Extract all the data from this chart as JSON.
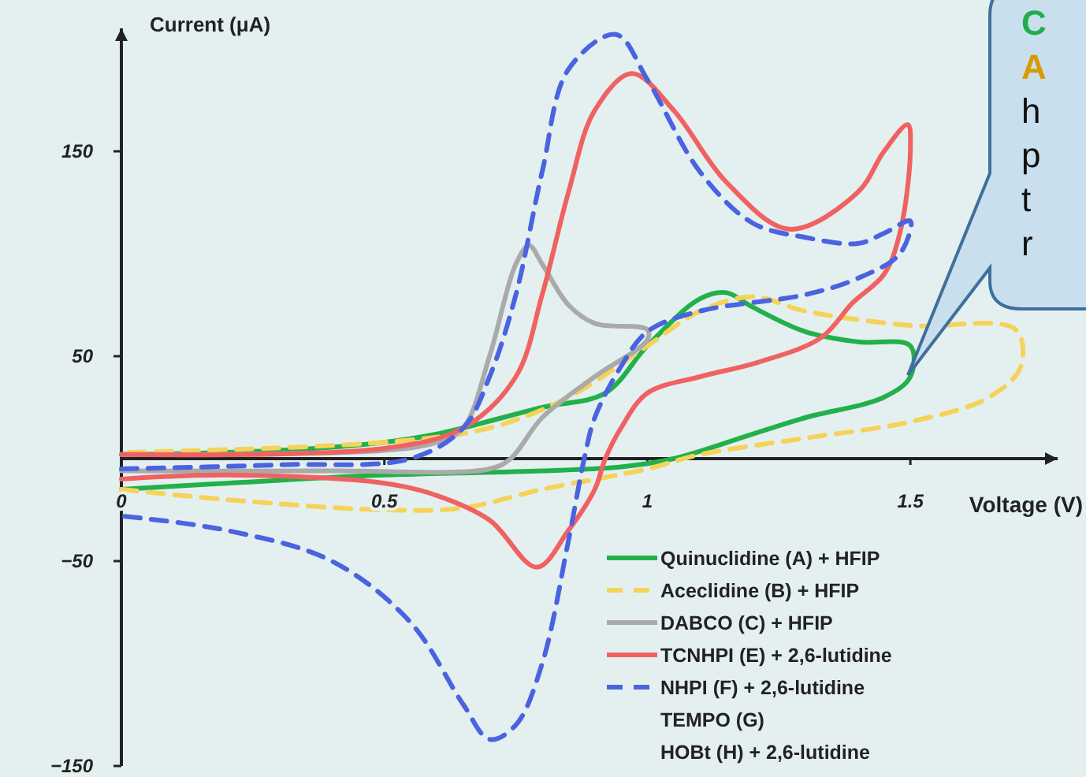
{
  "chart_data": {
    "type": "line",
    "xlabel": "Voltage (V)",
    "ylabel": "Current (μA)",
    "xlim": [
      0,
      1.78
    ],
    "ylim": [
      -150,
      210
    ],
    "xticks": [
      0,
      0.5,
      1,
      1.5
    ],
    "yticks": [
      {
        "value": -150,
        "label": "−150"
      },
      {
        "value": -50,
        "label": "−50"
      },
      50,
      150
    ],
    "legend": "bottom right",
    "grid": false,
    "annotations": [
      "TEMPO (G)",
      "HOBt (H) + 2,6-lutidine",
      "C",
      "A",
      "h",
      "p",
      "t",
      "r"
    ],
    "series": [
      {
        "name": "Quinuclidine (A) + HFIP",
        "color": "#22b04a",
        "line_style": "solid",
        "x": [
          0,
          0.2,
          0.5,
          0.8,
          0.95,
          1.05,
          1.2,
          1.3,
          1.45,
          1.5,
          1.5,
          1.4,
          1.3,
          1.2,
          1.15,
          1.1,
          1.0,
          0.92,
          0.8,
          0.6,
          0.5,
          0.3,
          0
        ],
        "values": [
          -15,
          -12,
          -8,
          -6,
          -4,
          0,
          12,
          20,
          30,
          40,
          55,
          57,
          62,
          74,
          81,
          78,
          55,
          32,
          25,
          12,
          8,
          4,
          2
        ]
      },
      {
        "name": "Aceclidine (B) + HFIP",
        "color": "#f5d35a",
        "line_style": "dashed",
        "x": [
          0,
          0.2,
          0.5,
          0.65,
          0.8,
          1.0,
          1.1,
          1.3,
          1.5,
          1.65,
          1.71,
          1.7,
          1.5,
          1.3,
          1.2,
          1.1,
          1.0,
          0.85,
          0.7,
          0.5,
          0
        ],
        "values": [
          -15,
          -20,
          -25,
          -24,
          -15,
          -5,
          2,
          10,
          18,
          30,
          45,
          63,
          65,
          72,
          79,
          72,
          55,
          30,
          15,
          8,
          3
        ]
      },
      {
        "name": "DABCO (C) + HFIP",
        "color": "#aaaaaa",
        "line_style": "solid",
        "x": [
          0,
          0.5,
          0.6,
          0.65,
          0.7,
          0.75,
          0.775,
          0.8,
          0.85,
          0.9,
          1.0,
          1.0,
          0.9,
          0.8,
          0.74,
          0.7,
          0.4,
          0
        ],
        "values": [
          2,
          4,
          8,
          15,
          50,
          95,
          104,
          95,
          75,
          66,
          63,
          58,
          40,
          20,
          0,
          -5,
          -6,
          -6
        ]
      },
      {
        "name": "TCNHPI (E) + 2,6-lutidine",
        "color": "#f06262",
        "line_style": "solid",
        "x": [
          0,
          0.5,
          0.65,
          0.75,
          0.8,
          0.85,
          0.9,
          0.97,
          1.05,
          1.15,
          1.27,
          1.4,
          1.45,
          1.495,
          1.5,
          1.48,
          1.45,
          1.39,
          1.33,
          1.21,
          1.1,
          1.0,
          0.95,
          0.92,
          0.9,
          0.85,
          0.79,
          0.7,
          0.6,
          0.5,
          0.2,
          0
        ],
        "values": [
          2,
          5,
          15,
          40,
          80,
          130,
          170,
          188,
          170,
          135,
          112,
          130,
          150,
          163,
          150,
          110,
          90,
          76,
          59,
          47,
          40,
          32,
          15,
          0,
          -15,
          -35,
          -53,
          -30,
          -18,
          -12,
          -8,
          -10
        ]
      },
      {
        "name": "NHPI (F) + 2,6-lutidine",
        "color": "#4a63e0",
        "line_style": "dashed",
        "x": [
          0,
          0.3,
          0.55,
          0.65,
          0.7,
          0.75,
          0.8,
          0.85,
          0.94,
          1.0,
          1.1,
          1.2,
          1.3,
          1.4,
          1.45,
          1.5,
          1.48,
          1.4,
          1.3,
          1.1,
          1.0,
          0.95,
          0.9,
          0.88,
          0.85,
          0.8,
          0.75,
          0.7,
          0.65,
          0.55,
          0.4,
          0.2,
          0
        ],
        "values": [
          -5,
          -3,
          0,
          15,
          40,
          80,
          140,
          190,
          207,
          185,
          140,
          115,
          108,
          105,
          110,
          116,
          100,
          88,
          80,
          72,
          62,
          45,
          20,
          0,
          -40,
          -100,
          -130,
          -137,
          -120,
          -80,
          -50,
          -35,
          -28
        ]
      }
    ]
  }
}
